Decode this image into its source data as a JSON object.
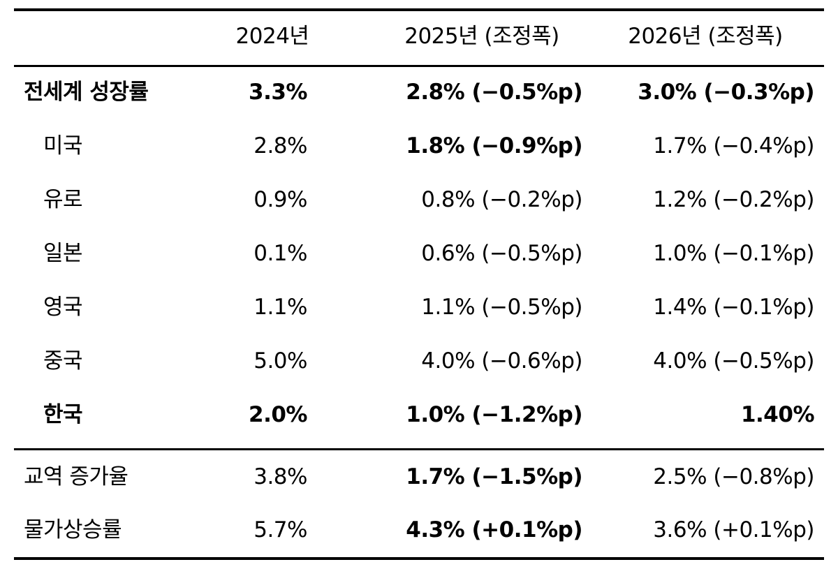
{
  "header": {
    "col1": "2024년",
    "col2": "2025년 (조정폭)",
    "col3": "2026년 (조정폭)"
  },
  "rows": [
    {
      "label": "전세계 성장률",
      "y2024": "3.3%",
      "y2025": "2.8% (−0.5%p)",
      "y2026": "3.0% (−0.3%p)"
    },
    {
      "label": "미국",
      "y2024": "2.8%",
      "y2025": "1.8% (−0.9%p)",
      "y2026": "1.7% (−0.4%p)"
    },
    {
      "label": "유로",
      "y2024": "0.9%",
      "y2025": "0.8% (−0.2%p)",
      "y2026": "1.2% (−0.2%p)"
    },
    {
      "label": "일본",
      "y2024": "0.1%",
      "y2025": "0.6% (−0.5%p)",
      "y2026": "1.0% (−0.1%p)"
    },
    {
      "label": "영국",
      "y2024": "1.1%",
      "y2025": "1.1% (−0.5%p)",
      "y2026": "1.4% (−0.1%p)"
    },
    {
      "label": "중국",
      "y2024": "5.0%",
      "y2025": "4.0% (−0.6%p)",
      "y2026": "4.0% (−0.5%p)"
    },
    {
      "label": "한국",
      "y2024": "2.0%",
      "y2025": "1.0% (−1.2%p)",
      "y2026": "1.40%"
    },
    {
      "label": "교역 증가율",
      "y2024": "3.8%",
      "y2025": "1.7% (−1.5%p)",
      "y2026": "2.5% (−0.8%p)"
    },
    {
      "label": "물가상승률",
      "y2024": "5.7%",
      "y2025": "4.3% (+0.1%p)",
      "y2026": "3.6% (+0.1%p)"
    }
  ]
}
